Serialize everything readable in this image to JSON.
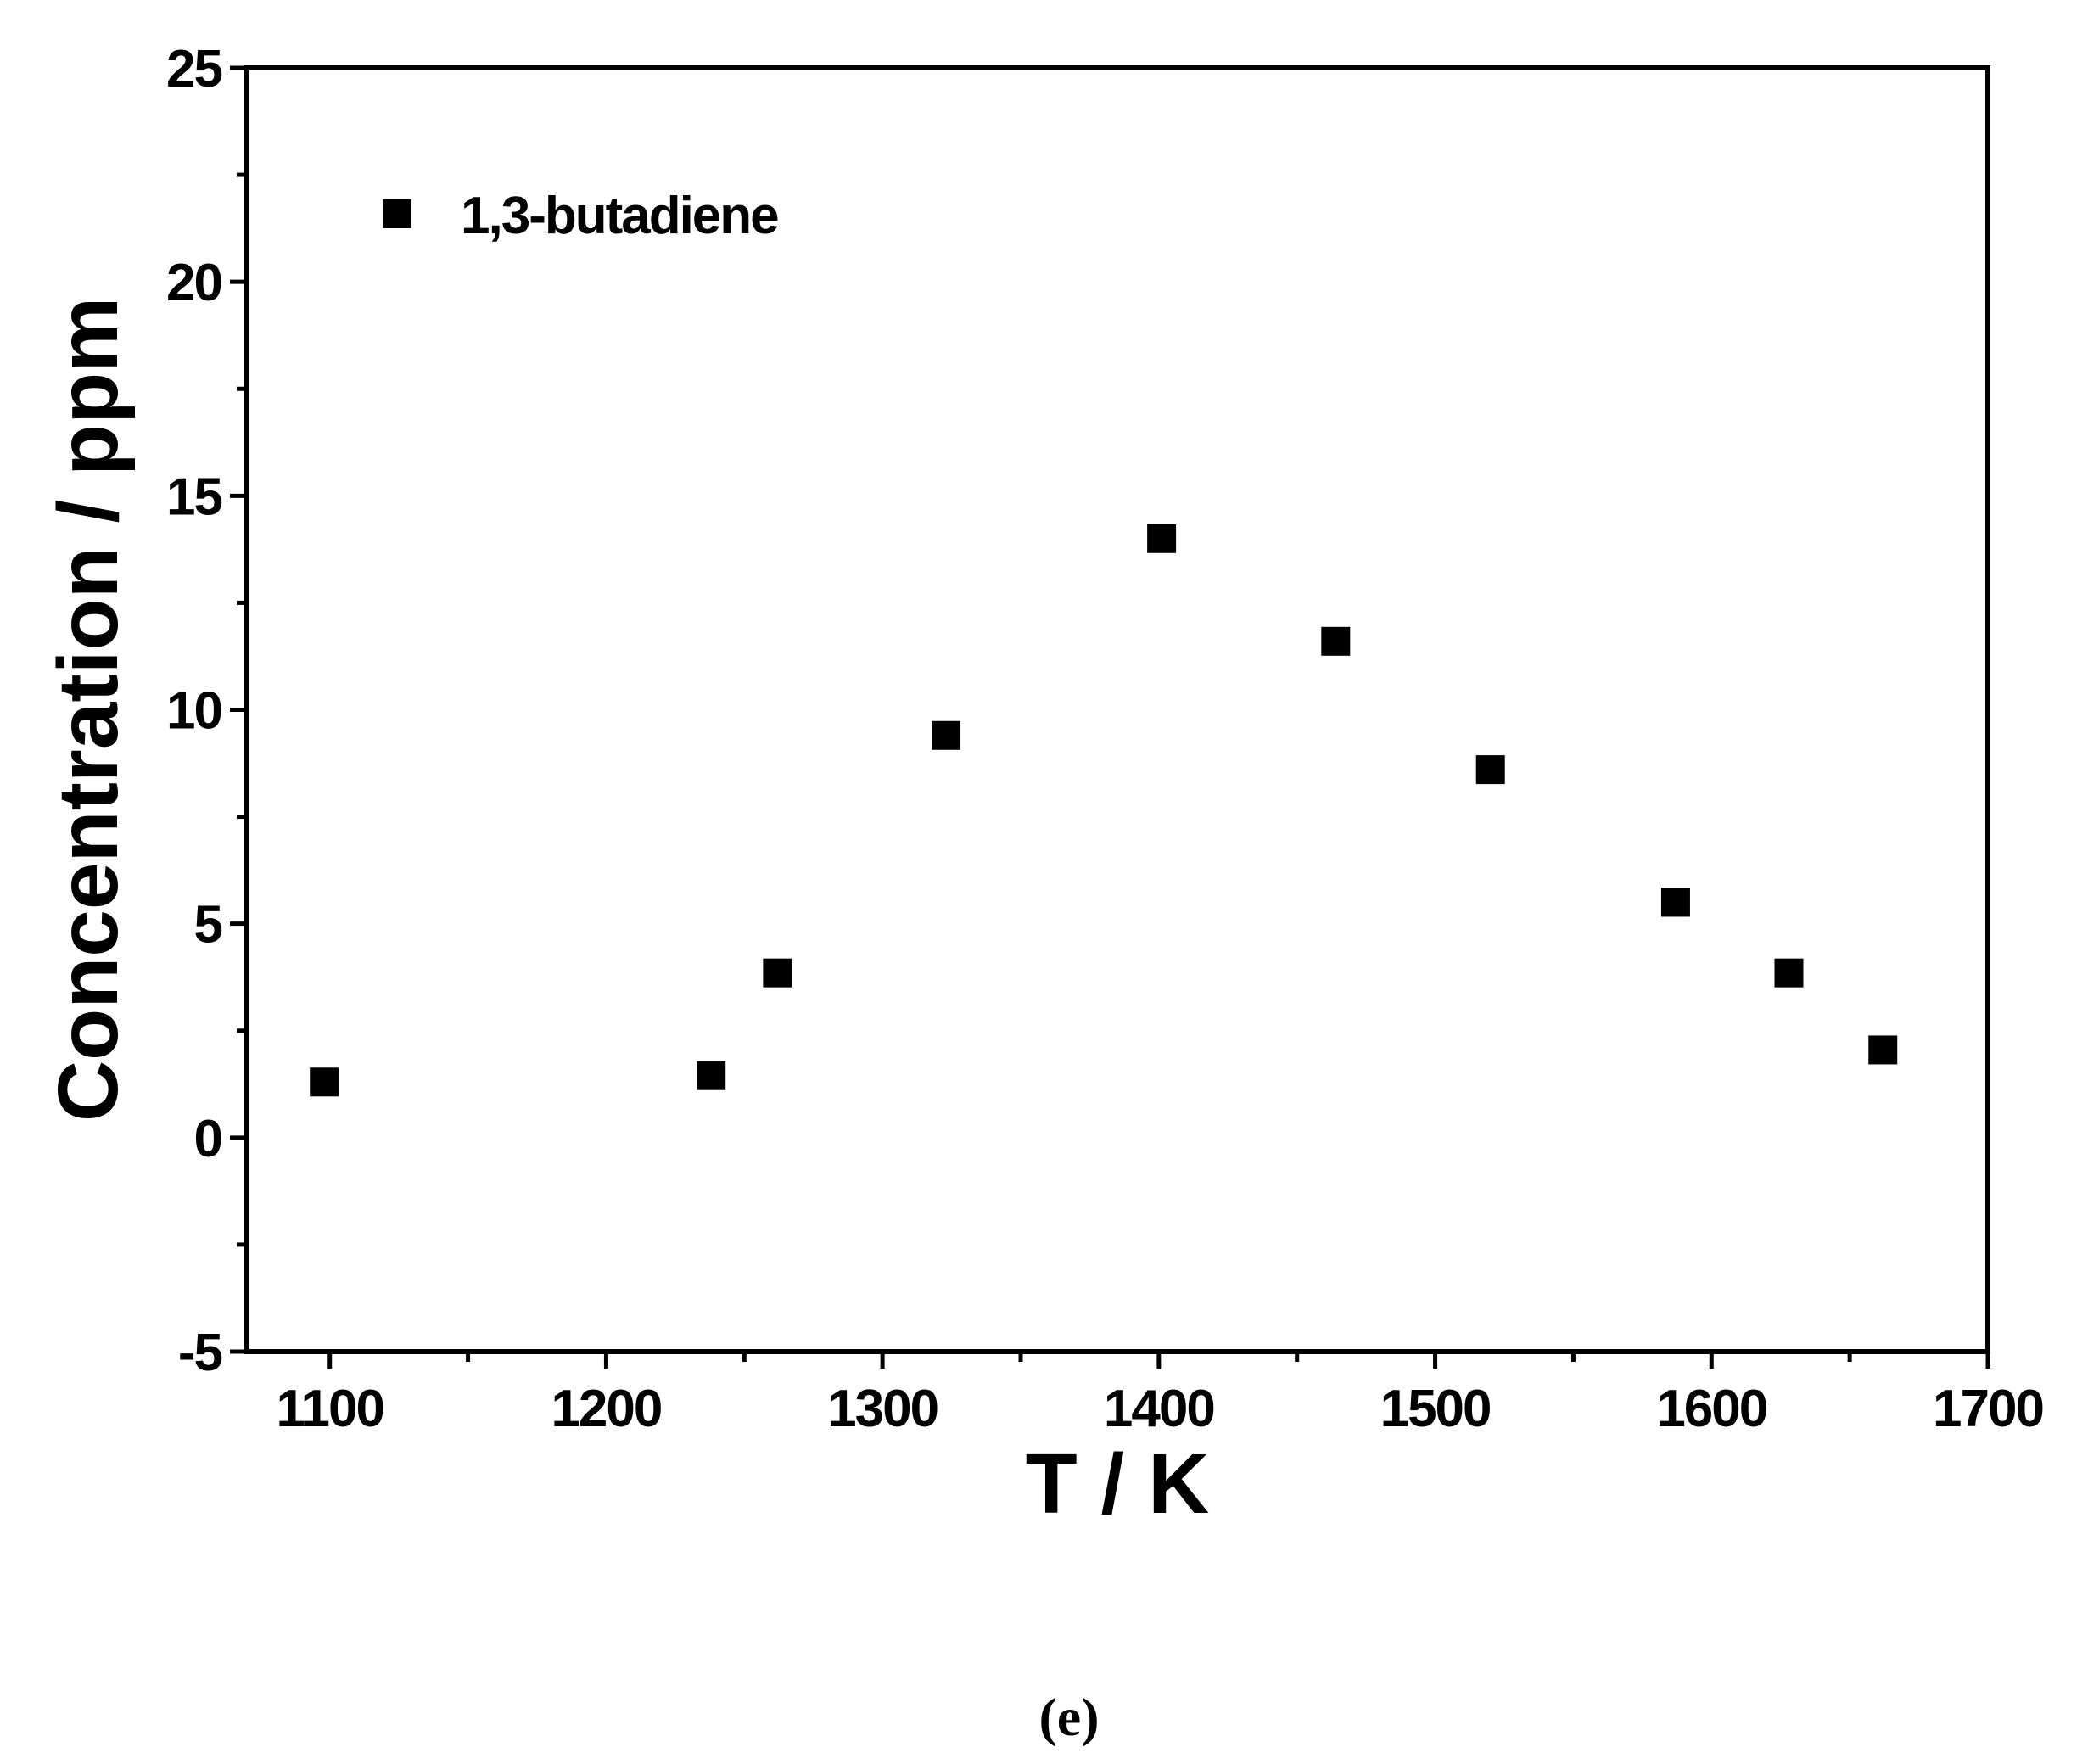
{
  "chart_data": {
    "type": "scatter",
    "xlabel": "T / K",
    "ylabel": "Concentration / ppm",
    "xlim": [
      1070,
      1700
    ],
    "ylim": [
      -5,
      25
    ],
    "x_ticks": [
      1100,
      1200,
      1300,
      1400,
      1500,
      1600,
      1700
    ],
    "y_ticks": [
      -5,
      0,
      5,
      10,
      15,
      20,
      25
    ],
    "x_minor_step": 50,
    "y_minor_step": 2.5,
    "grid": false,
    "legend_position": "top-left",
    "series": [
      {
        "name": "1,3-butadiene",
        "marker": "square",
        "color": "#000000",
        "points": [
          {
            "x": 1098,
            "y": 1.3
          },
          {
            "x": 1238,
            "y": 1.45
          },
          {
            "x": 1262,
            "y": 3.85
          },
          {
            "x": 1323,
            "y": 9.4
          },
          {
            "x": 1401,
            "y": 14.0
          },
          {
            "x": 1464,
            "y": 11.6
          },
          {
            "x": 1520,
            "y": 8.6
          },
          {
            "x": 1587,
            "y": 5.5
          },
          {
            "x": 1628,
            "y": 3.85
          },
          {
            "x": 1662,
            "y": 2.05
          }
        ]
      }
    ]
  },
  "panel_label": "(e)"
}
